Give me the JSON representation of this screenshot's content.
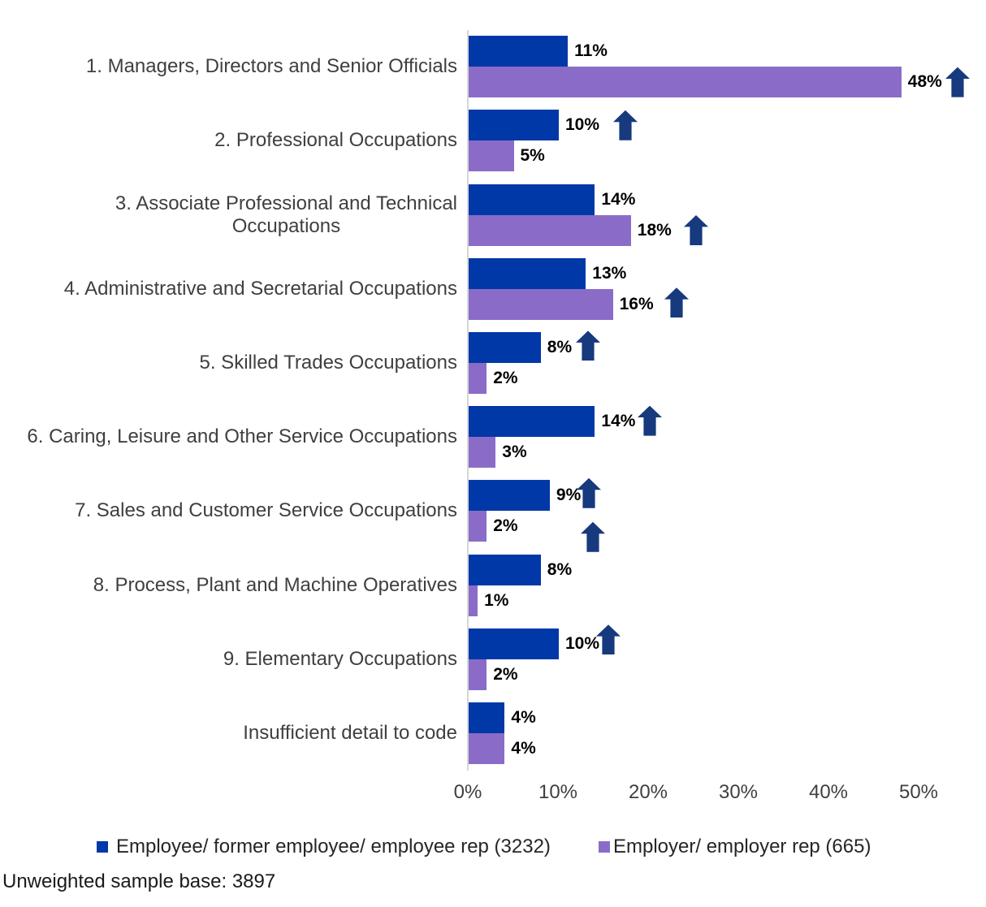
{
  "chart_data": {
    "type": "bar",
    "orientation": "horizontal",
    "title": "",
    "xlabel": "",
    "ylabel": "",
    "xlim": [
      0,
      50
    ],
    "x_ticks": [
      "0%",
      "10%",
      "20%",
      "30%",
      "40%",
      "50%"
    ],
    "x_tick_values": [
      0,
      10,
      20,
      30,
      40,
      50
    ],
    "grid": false,
    "legend_position": "bottom",
    "categories": [
      "1. Managers, Directors and Senior Officials",
      "2. Professional Occupations",
      "3. Associate Professional and Technical\nOccupations",
      "4. Administrative and Secretarial Occupations",
      "5. Skilled Trades Occupations",
      "6. Caring, Leisure and Other Service Occupations",
      "7. Sales and Customer Service Occupations",
      "8. Process, Plant and Machine Operatives",
      "9. Elementary Occupations",
      "Insufficient detail to code"
    ],
    "series": [
      {
        "name": "Employee/ former employee/ employee rep (3232)",
        "color": "#0038a8",
        "values": [
          11,
          10,
          14,
          13,
          8,
          14,
          9,
          8,
          10,
          4
        ],
        "labels": [
          "11%",
          "10%",
          "14%",
          "13%",
          "8%",
          "14%",
          "9%",
          "8%",
          "10%",
          "4%"
        ],
        "arrows": [
          false,
          true,
          false,
          false,
          true,
          true,
          true,
          false,
          true,
          false
        ]
      },
      {
        "name": "Employer/ employer rep (665)",
        "color": "#8a6cc8",
        "values": [
          48,
          5,
          18,
          16,
          2,
          3,
          2,
          1,
          2,
          4
        ],
        "labels": [
          "48%",
          "5%",
          "18%",
          "16%",
          "2%",
          "3%",
          "2%",
          "1%",
          "2%",
          "4%"
        ],
        "arrows": [
          true,
          false,
          true,
          true,
          false,
          false,
          true,
          false,
          false,
          false
        ]
      }
    ],
    "arrow_color": "#17397e"
  },
  "legend": {
    "items": [
      {
        "label": "Employee/ former employee/ employee rep (3232)",
        "color": "#0038a8"
      },
      {
        "label": "Employer/ employer rep (665)",
        "color": "#8a6cc8"
      }
    ]
  },
  "footer": {
    "text": "Unweighted sample base: 3897"
  }
}
